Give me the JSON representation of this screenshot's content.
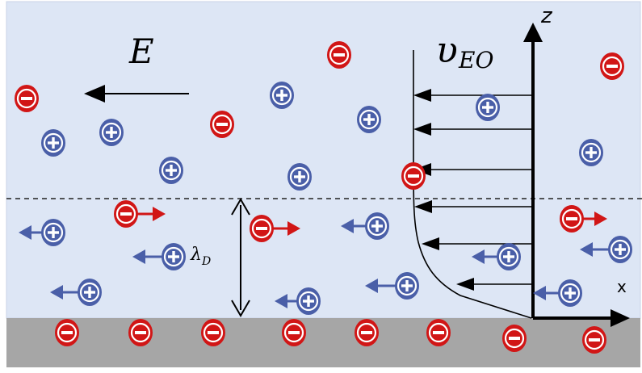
{
  "labels": {
    "field": "E",
    "velocity_main": "υ",
    "velocity_sub": "EO",
    "debye_main": "λ",
    "debye_sub": "D",
    "z_axis": "z",
    "x_axis": "x",
    "anion_symbol": "−",
    "cation_symbol": "+"
  },
  "colors": {
    "fluid": "#dde6f5",
    "wall": "#a6a6a6",
    "anion": "#d11616",
    "cation": "#4a5fa8",
    "arrow": "#000000",
    "dashed_line": "#222222"
  },
  "icons": {
    "anion": "negative-ion-icon",
    "cation": "positive-ion-icon",
    "drift": "drift-arrow-icon"
  }
}
